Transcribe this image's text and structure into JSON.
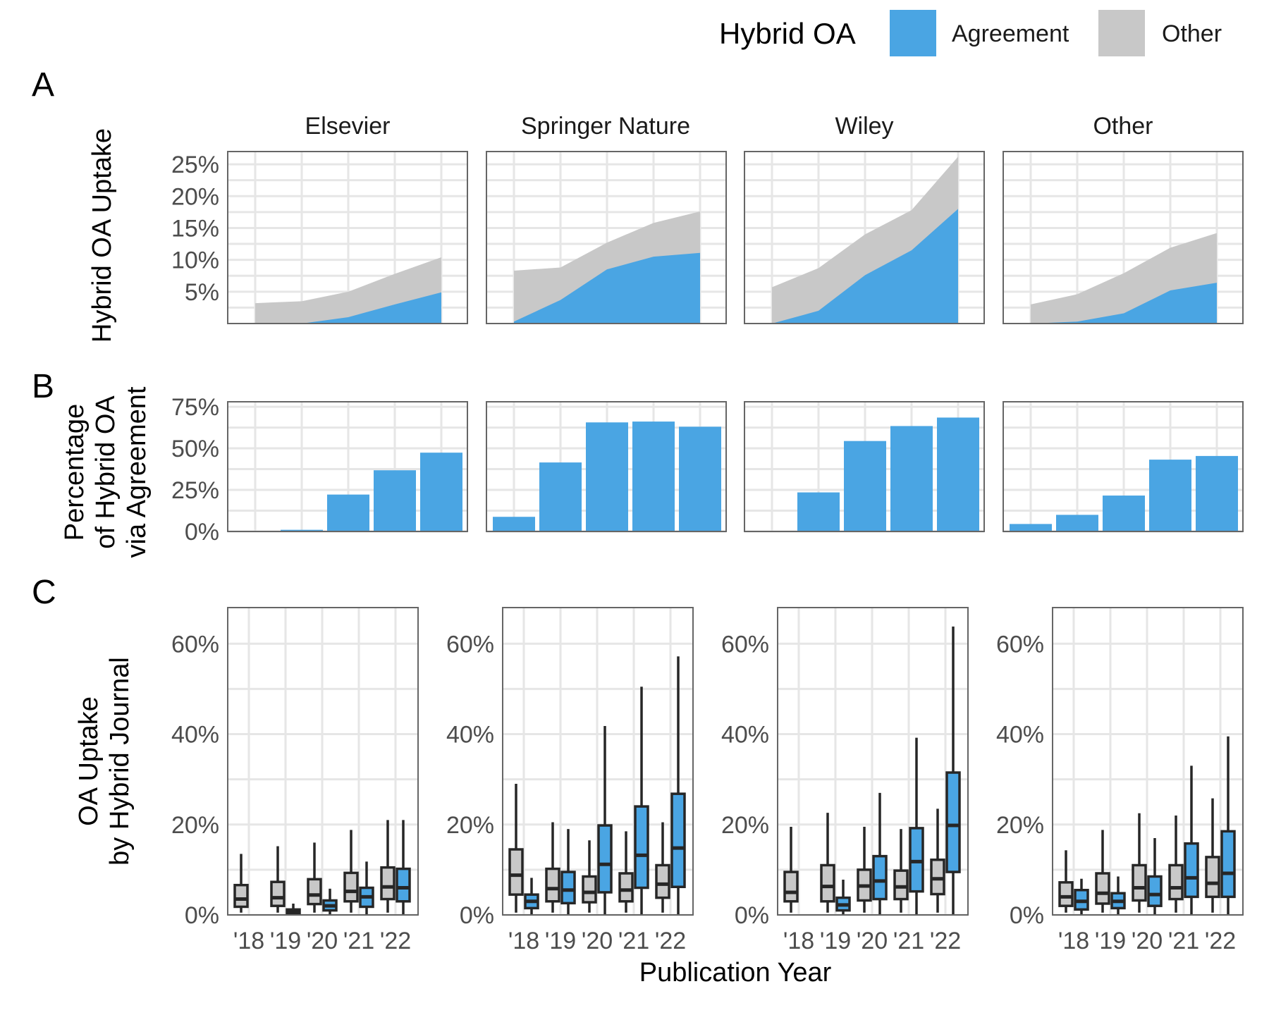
{
  "legend": {
    "title": "Hybrid OA",
    "items": [
      {
        "label": "Agreement",
        "color": "#4aa5e3"
      },
      {
        "label": "Other",
        "color": "#c8c8c8"
      }
    ]
  },
  "panel_tags": [
    "A",
    "B",
    "C"
  ],
  "facets": [
    "Elsevier",
    "Springer Nature",
    "Wiley",
    "Other"
  ],
  "x_title": "Publication Year",
  "x_ticks": [
    "'18",
    "'19",
    "'20",
    "'21",
    "'22"
  ],
  "chart_data": [
    {
      "panel": "A",
      "type": "area",
      "stacked": true,
      "ylabel": [
        "Hybrid OA Uptake"
      ],
      "ylim": [
        0,
        0.27
      ],
      "yticks": [
        0.05,
        0.1,
        0.15,
        0.2,
        0.25
      ],
      "ytick_labels": [
        "5%",
        "10%",
        "15%",
        "20%",
        "25%"
      ],
      "x": [
        2018,
        2019,
        2020,
        2021,
        2022
      ],
      "facets": [
        {
          "name": "Elsevier",
          "agreement": [
            0.0,
            0.0,
            0.01,
            0.03,
            0.049
          ],
          "total": [
            0.032,
            0.035,
            0.05,
            0.078,
            0.104
          ]
        },
        {
          "name": "Springer Nature",
          "agreement": [
            0.003,
            0.037,
            0.085,
            0.105,
            0.111
          ],
          "total": [
            0.083,
            0.088,
            0.127,
            0.158,
            0.176
          ]
        },
        {
          "name": "Wiley",
          "agreement": [
            0.0,
            0.02,
            0.076,
            0.115,
            0.18
          ],
          "total": [
            0.057,
            0.087,
            0.14,
            0.178,
            0.262
          ]
        },
        {
          "name": "Other",
          "agreement": [
            0.0,
            0.003,
            0.016,
            0.052,
            0.064
          ],
          "total": [
            0.03,
            0.046,
            0.079,
            0.119,
            0.142
          ]
        }
      ]
    },
    {
      "panel": "B",
      "type": "bar",
      "ylabel": [
        "Percentage",
        "of Hybrid OA",
        "via Agreement"
      ],
      "ylim": [
        0,
        0.78
      ],
      "yticks": [
        0,
        0.25,
        0.5,
        0.75
      ],
      "ytick_labels": [
        "0%",
        "25%",
        "50%",
        "75%"
      ],
      "categories": [
        2018,
        2019,
        2020,
        2021,
        2022
      ],
      "facets": [
        {
          "name": "Elsevier",
          "values": [
            0.002,
            0.01,
            0.222,
            0.368,
            0.474
          ]
        },
        {
          "name": "Springer Nature",
          "values": [
            0.088,
            0.415,
            0.656,
            0.661,
            0.63
          ]
        },
        {
          "name": "Wiley",
          "values": [
            0.0,
            0.235,
            0.544,
            0.634,
            0.685
          ]
        },
        {
          "name": "Other",
          "values": [
            0.045,
            0.1,
            0.216,
            0.432,
            0.454
          ]
        }
      ]
    },
    {
      "panel": "C",
      "type": "box",
      "ylabel": [
        "OA Uptake",
        "by Hybrid Journal"
      ],
      "ylim": [
        0,
        0.68
      ],
      "yticks": [
        0,
        0.2,
        0.4,
        0.6
      ],
      "ytick_labels": [
        "0%",
        "20%",
        "40%",
        "60%"
      ],
      "categories": [
        2018,
        2019,
        2020,
        2021,
        2022
      ],
      "facets": [
        {
          "name": "Elsevier",
          "boxes": [
            {
              "year": 2018,
              "group": "Other",
              "min": 0.005,
              "q1": 0.018,
              "median": 0.035,
              "q3": 0.066,
              "max": 0.135
            },
            {
              "year": 2019,
              "group": "Other",
              "min": 0.005,
              "q1": 0.02,
              "median": 0.038,
              "q3": 0.073,
              "max": 0.152
            },
            {
              "year": 2019,
              "group": "Agreement",
              "min": 0.0,
              "q1": 0.002,
              "median": 0.006,
              "q3": 0.012,
              "max": 0.025
            },
            {
              "year": 2020,
              "group": "Other",
              "min": 0.005,
              "q1": 0.024,
              "median": 0.044,
              "q3": 0.079,
              "max": 0.16
            },
            {
              "year": 2020,
              "group": "Agreement",
              "min": 0.0,
              "q1": 0.01,
              "median": 0.02,
              "q3": 0.032,
              "max": 0.058
            },
            {
              "year": 2021,
              "group": "Other",
              "min": 0.005,
              "q1": 0.03,
              "median": 0.052,
              "q3": 0.093,
              "max": 0.188
            },
            {
              "year": 2021,
              "group": "Agreement",
              "min": 0.0,
              "q1": 0.018,
              "median": 0.04,
              "q3": 0.06,
              "max": 0.118
            },
            {
              "year": 2022,
              "group": "Other",
              "min": 0.005,
              "q1": 0.035,
              "median": 0.062,
              "q3": 0.105,
              "max": 0.21
            },
            {
              "year": 2022,
              "group": "Agreement",
              "min": 0.0,
              "q1": 0.03,
              "median": 0.06,
              "q3": 0.102,
              "max": 0.21
            }
          ]
        },
        {
          "name": "Springer Nature",
          "boxes": [
            {
              "year": 2018,
              "group": "Other",
              "min": 0.005,
              "q1": 0.045,
              "median": 0.088,
              "q3": 0.145,
              "max": 0.29
            },
            {
              "year": 2018,
              "group": "Agreement",
              "min": 0.0,
              "q1": 0.015,
              "median": 0.03,
              "q3": 0.045,
              "max": 0.082
            },
            {
              "year": 2019,
              "group": "Other",
              "min": 0.005,
              "q1": 0.03,
              "median": 0.058,
              "q3": 0.102,
              "max": 0.205
            },
            {
              "year": 2019,
              "group": "Agreement",
              "min": 0.0,
              "q1": 0.026,
              "median": 0.055,
              "q3": 0.095,
              "max": 0.19
            },
            {
              "year": 2020,
              "group": "Other",
              "min": 0.005,
              "q1": 0.028,
              "median": 0.05,
              "q3": 0.085,
              "max": 0.165
            },
            {
              "year": 2020,
              "group": "Agreement",
              "min": 0.0,
              "q1": 0.05,
              "median": 0.112,
              "q3": 0.198,
              "max": 0.418
            },
            {
              "year": 2021,
              "group": "Other",
              "min": 0.005,
              "q1": 0.03,
              "median": 0.055,
              "q3": 0.092,
              "max": 0.185
            },
            {
              "year": 2021,
              "group": "Agreement",
              "min": 0.0,
              "q1": 0.06,
              "median": 0.132,
              "q3": 0.24,
              "max": 0.505
            },
            {
              "year": 2022,
              "group": "Other",
              "min": 0.005,
              "q1": 0.038,
              "median": 0.068,
              "q3": 0.11,
              "max": 0.205
            },
            {
              "year": 2022,
              "group": "Agreement",
              "min": 0.0,
              "q1": 0.062,
              "median": 0.148,
              "q3": 0.268,
              "max": 0.572
            }
          ]
        },
        {
          "name": "Wiley",
          "boxes": [
            {
              "year": 2018,
              "group": "Other",
              "min": 0.005,
              "q1": 0.03,
              "median": 0.05,
              "q3": 0.095,
              "max": 0.195
            },
            {
              "year": 2019,
              "group": "Other",
              "min": 0.005,
              "q1": 0.03,
              "median": 0.063,
              "q3": 0.11,
              "max": 0.226
            },
            {
              "year": 2019,
              "group": "Agreement",
              "min": 0.0,
              "q1": 0.01,
              "median": 0.022,
              "q3": 0.038,
              "max": 0.078
            },
            {
              "year": 2020,
              "group": "Other",
              "min": 0.005,
              "q1": 0.032,
              "median": 0.064,
              "q3": 0.1,
              "max": 0.195
            },
            {
              "year": 2020,
              "group": "Agreement",
              "min": 0.0,
              "q1": 0.035,
              "median": 0.075,
              "q3": 0.13,
              "max": 0.27
            },
            {
              "year": 2021,
              "group": "Other",
              "min": 0.005,
              "q1": 0.035,
              "median": 0.062,
              "q3": 0.098,
              "max": 0.19
            },
            {
              "year": 2021,
              "group": "Agreement",
              "min": 0.0,
              "q1": 0.052,
              "median": 0.118,
              "q3": 0.192,
              "max": 0.392
            },
            {
              "year": 2022,
              "group": "Other",
              "min": 0.005,
              "q1": 0.046,
              "median": 0.08,
              "q3": 0.122,
              "max": 0.235
            },
            {
              "year": 2022,
              "group": "Agreement",
              "min": 0.0,
              "q1": 0.095,
              "median": 0.198,
              "q3": 0.315,
              "max": 0.638
            }
          ]
        },
        {
          "name": "Other",
          "boxes": [
            {
              "year": 2018,
              "group": "Other",
              "min": 0.005,
              "q1": 0.02,
              "median": 0.04,
              "q3": 0.072,
              "max": 0.143
            },
            {
              "year": 2018,
              "group": "Agreement",
              "min": 0.0,
              "q1": 0.012,
              "median": 0.03,
              "q3": 0.055,
              "max": 0.08
            },
            {
              "year": 2019,
              "group": "Other",
              "min": 0.005,
              "q1": 0.025,
              "median": 0.048,
              "q3": 0.092,
              "max": 0.188
            },
            {
              "year": 2019,
              "group": "Agreement",
              "min": 0.0,
              "q1": 0.015,
              "median": 0.03,
              "q3": 0.048,
              "max": 0.085
            },
            {
              "year": 2020,
              "group": "Other",
              "min": 0.005,
              "q1": 0.032,
              "median": 0.06,
              "q3": 0.11,
              "max": 0.225
            },
            {
              "year": 2020,
              "group": "Agreement",
              "min": 0.0,
              "q1": 0.02,
              "median": 0.045,
              "q3": 0.085,
              "max": 0.17
            },
            {
              "year": 2021,
              "group": "Other",
              "min": 0.005,
              "q1": 0.035,
              "median": 0.06,
              "q3": 0.11,
              "max": 0.22
            },
            {
              "year": 2021,
              "group": "Agreement",
              "min": 0.0,
              "q1": 0.04,
              "median": 0.082,
              "q3": 0.158,
              "max": 0.33
            },
            {
              "year": 2022,
              "group": "Other",
              "min": 0.005,
              "q1": 0.04,
              "median": 0.07,
              "q3": 0.128,
              "max": 0.258
            },
            {
              "year": 2022,
              "group": "Agreement",
              "min": 0.0,
              "q1": 0.04,
              "median": 0.092,
              "q3": 0.185,
              "max": 0.395
            }
          ]
        }
      ]
    }
  ]
}
